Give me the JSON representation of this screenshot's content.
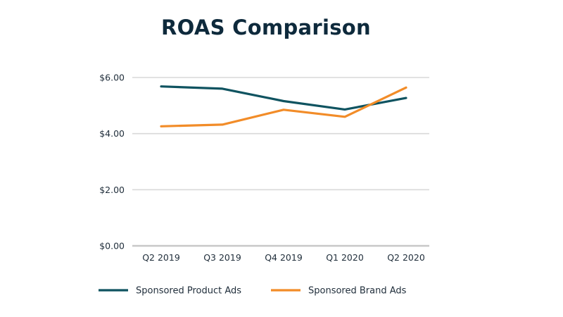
{
  "chart_data": {
    "type": "line",
    "title": "ROAS Comparison",
    "xlabel": "",
    "ylabel": "",
    "categories": [
      "Q2 2019",
      "Q3 2019",
      "Q4 2019",
      "Q1 2020",
      "Q2 2020"
    ],
    "y_ticks": [
      "$0.00",
      "$2.00",
      "$4.00",
      "$6.00"
    ],
    "y_tick_values": [
      0,
      2,
      4,
      6
    ],
    "ylim": [
      0,
      6
    ],
    "grid": true,
    "legend_position": "bottom",
    "series": [
      {
        "name": "Sponsored Product Ads",
        "color": "#0f5360",
        "values": [
          5.68,
          5.6,
          5.16,
          4.86,
          5.27
        ]
      },
      {
        "name": "Sponsored Brand Ads",
        "color": "#f28c28",
        "values": [
          4.26,
          4.32,
          4.85,
          4.6,
          5.64
        ]
      }
    ]
  }
}
